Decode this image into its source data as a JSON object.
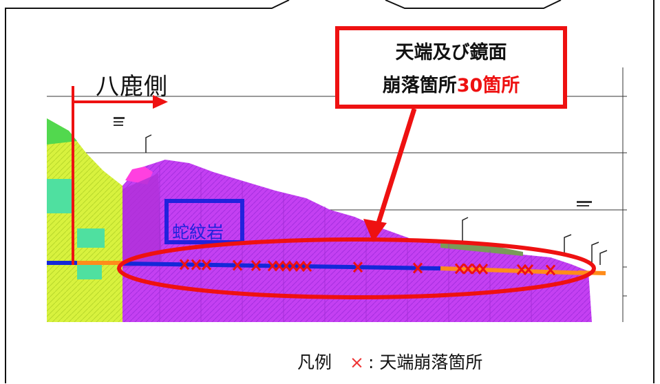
{
  "side_label": "八鹿側",
  "rock_label": "蛇紋岩",
  "callout": {
    "line1": "天端及び鏡面",
    "line2_prefix": "崩落箇所",
    "line2_count": "30箇所"
  },
  "legend": {
    "prefix": "凡例",
    "marker": "×",
    "description": ": 天端崩落箇所"
  },
  "colors": {
    "accent_red": "#ee1111",
    "rock_purple": "#c040f0",
    "tunnel_blue": "#1428d8",
    "tunnel_orange": "#ff8c1a",
    "soil_yellow": "#d4f03c",
    "label_blue": "#2222dd"
  },
  "collapse_marker_count": 30
}
